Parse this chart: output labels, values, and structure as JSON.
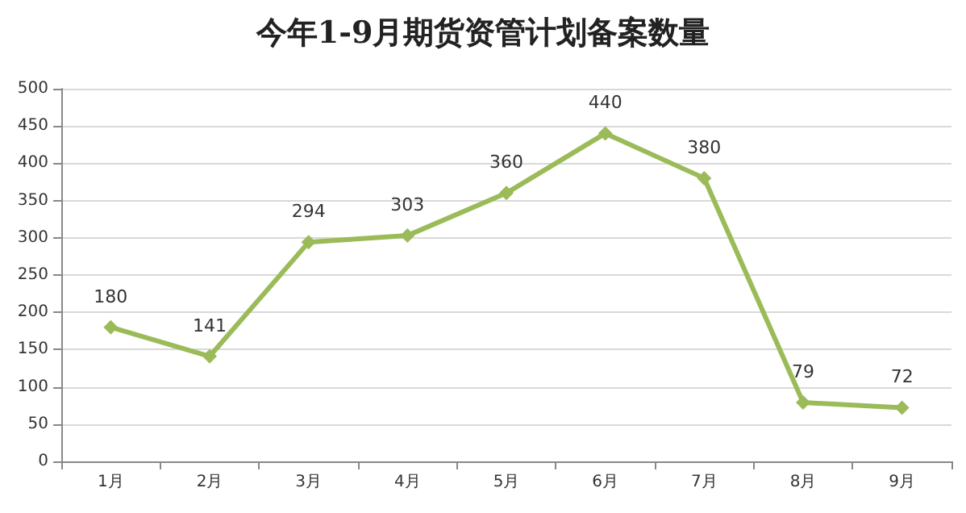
{
  "chart_data": {
    "type": "line",
    "title": "今年1-9月期货资管计划备案数量",
    "categories": [
      "1月",
      "2月",
      "3月",
      "4月",
      "5月",
      "6月",
      "7月",
      "8月",
      "9月"
    ],
    "series": [
      {
        "color": "#9bbb59",
        "values": [
          180,
          141,
          294,
          303,
          360,
          440,
          380,
          79,
          72
        ]
      }
    ],
    "ylim": [
      0,
      500
    ],
    "yticks": [
      0,
      50,
      100,
      150,
      200,
      250,
      300,
      350,
      400,
      450,
      500
    ],
    "grid": "y",
    "marker": "diamond",
    "line_style": "solid",
    "data_labels": true
  }
}
